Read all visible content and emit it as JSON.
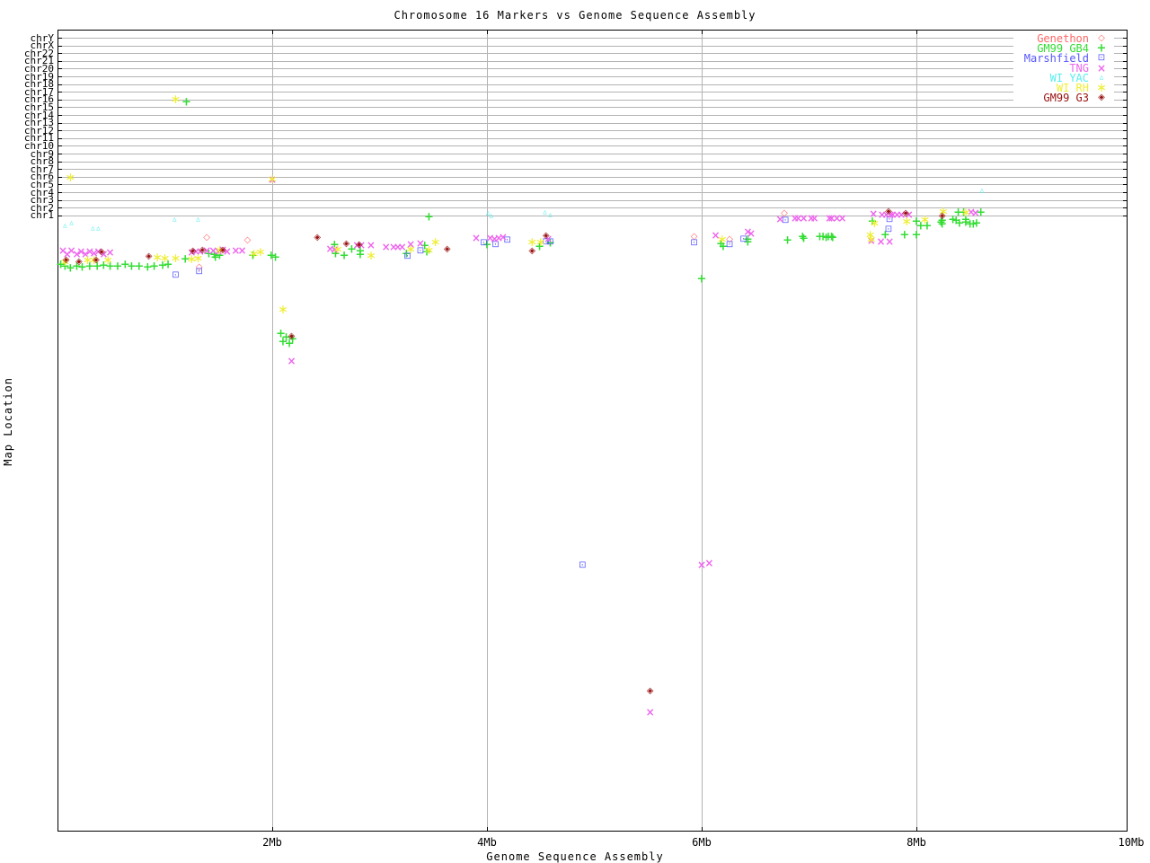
{
  "title": "Chromosome 16 Markers vs Genome Sequence Assembly",
  "x_axis_label": "Genome Sequence Assembly",
  "y_axis_label": "Map Location",
  "chart_data": {
    "type": "scatter",
    "title": "Chromosome 16 Markers vs Genome Sequence Assembly",
    "xlabel": "Genome Sequence Assembly",
    "ylabel": "Map Location",
    "xlim_mb": [
      0,
      10
    ],
    "grid": true,
    "legend_position": "top-right",
    "x_ticks": [
      {
        "label": "2Mb",
        "mb": 2
      },
      {
        "label": "4Mb",
        "mb": 4
      },
      {
        "label": "6Mb",
        "mb": 6
      },
      {
        "label": "8Mb",
        "mb": 8
      },
      {
        "label": "10Mb",
        "mb": 10
      }
    ],
    "y_categories": [
      "chrY",
      "chrX",
      "chr22",
      "chr21",
      "chr20",
      "chr19",
      "chr18",
      "chr17",
      "chr16",
      "chr15",
      "chr14",
      "chr13",
      "chr12",
      "chr11",
      "chr10",
      "chr9",
      "chr8",
      "chr7",
      "chr6",
      "chr5",
      "chr4",
      "chr3",
      "chr2",
      "chr1"
    ],
    "note": "points are [x in Mb, y in screen px]; lower y-axis region (map location within maps) is unlabeled in source",
    "series": [
      {
        "name": "Genethon",
        "color": "#ff6666",
        "symbol": "diamond",
        "glyph": "◇",
        "points": [
          [
            1.39,
            265
          ],
          [
            1.77,
            268
          ],
          [
            5.93,
            264
          ],
          [
            6.26,
            267
          ],
          [
            6.77,
            238
          ],
          [
            1.32,
            298
          ]
        ]
      },
      {
        "name": "GM99 GB4",
        "color": "#33dd33",
        "symbol": "plus",
        "glyph": "+",
        "points": [
          [
            0.03,
            295
          ],
          [
            0.07,
            297
          ],
          [
            0.12,
            299
          ],
          [
            0.18,
            297
          ],
          [
            0.23,
            298
          ],
          [
            0.3,
            297
          ],
          [
            0.37,
            297
          ],
          [
            0.43,
            296
          ],
          [
            0.49,
            297
          ],
          [
            0.56,
            297
          ],
          [
            0.63,
            295
          ],
          [
            0.69,
            297
          ],
          [
            0.76,
            297
          ],
          [
            0.84,
            298
          ],
          [
            0.9,
            297
          ],
          [
            0.98,
            296
          ],
          [
            1.03,
            295
          ],
          [
            1.2,
            114
          ],
          [
            1.19,
            289
          ],
          [
            1.41,
            283
          ],
          [
            1.46,
            284
          ],
          [
            1.47,
            287
          ],
          [
            1.51,
            285
          ],
          [
            1.82,
            285
          ],
          [
            1.99,
            285
          ],
          [
            2.03,
            287
          ],
          [
            2.08,
            372
          ],
          [
            2.1,
            381
          ],
          [
            2.13,
            376
          ],
          [
            2.16,
            383
          ],
          [
            2.19,
            378
          ],
          [
            2.58,
            273
          ],
          [
            2.59,
            283
          ],
          [
            2.67,
            285
          ],
          [
            2.74,
            278
          ],
          [
            2.82,
            280
          ],
          [
            2.82,
            284
          ],
          [
            3.25,
            283
          ],
          [
            3.42,
            274
          ],
          [
            3.44,
            281
          ],
          [
            3.46,
            242
          ],
          [
            4.0,
            273
          ],
          [
            4.49,
            275
          ],
          [
            4.59,
            271
          ],
          [
            6.0,
            311
          ],
          [
            6.18,
            272
          ],
          [
            6.2,
            275
          ],
          [
            6.43,
            267
          ],
          [
            6.43,
            270
          ],
          [
            6.8,
            268
          ],
          [
            6.94,
            264
          ],
          [
            6.95,
            266
          ],
          [
            7.1,
            264
          ],
          [
            7.13,
            264
          ],
          [
            7.16,
            265
          ],
          [
            7.18,
            264
          ],
          [
            7.21,
            264
          ],
          [
            7.22,
            265
          ],
          [
            7.59,
            247
          ],
          [
            7.71,
            262
          ],
          [
            7.89,
            262
          ],
          [
            8.0,
            262
          ],
          [
            8.0,
            247
          ],
          [
            8.04,
            252
          ],
          [
            8.1,
            252
          ],
          [
            8.23,
            248
          ],
          [
            8.24,
            246
          ],
          [
            8.24,
            250
          ],
          [
            8.34,
            245
          ],
          [
            8.37,
            246
          ],
          [
            8.39,
            237
          ],
          [
            8.4,
            249
          ],
          [
            8.44,
            237
          ],
          [
            8.46,
            245
          ],
          [
            8.46,
            248
          ],
          [
            8.5,
            250
          ],
          [
            8.53,
            250
          ],
          [
            8.56,
            249
          ],
          [
            8.6,
            237
          ]
        ]
      },
      {
        "name": "Marshfield",
        "color": "#5555ff",
        "symbol": "square",
        "glyph": "⊡",
        "points": [
          [
            1.1,
            307
          ],
          [
            1.32,
            303
          ],
          [
            3.26,
            286
          ],
          [
            3.38,
            280
          ],
          [
            3.97,
            271
          ],
          [
            4.08,
            273
          ],
          [
            4.19,
            268
          ],
          [
            4.55,
            270
          ],
          [
            4.59,
            270
          ],
          [
            4.89,
            630
          ],
          [
            5.93,
            271
          ],
          [
            6.26,
            273
          ],
          [
            6.39,
            267
          ],
          [
            6.78,
            246
          ],
          [
            7.75,
            245
          ],
          [
            7.74,
            256
          ]
        ]
      },
      {
        "name": "TNG",
        "color": "#ee66ee",
        "symbol": "x",
        "glyph": "×",
        "points": [
          [
            0.05,
            279
          ],
          [
            0.09,
            283
          ],
          [
            0.13,
            279
          ],
          [
            0.18,
            283
          ],
          [
            0.22,
            280
          ],
          [
            0.26,
            283
          ],
          [
            0.3,
            280
          ],
          [
            0.34,
            282
          ],
          [
            0.38,
            280
          ],
          [
            0.43,
            283
          ],
          [
            0.49,
            281
          ],
          [
            1.25,
            281
          ],
          [
            1.29,
            280
          ],
          [
            1.33,
            280
          ],
          [
            1.39,
            279
          ],
          [
            1.45,
            279
          ],
          [
            1.5,
            280
          ],
          [
            1.54,
            278
          ],
          [
            1.58,
            280
          ],
          [
            1.66,
            279
          ],
          [
            1.72,
            279
          ],
          [
            2.0,
            200
          ],
          [
            2.18,
            402
          ],
          [
            2.54,
            277
          ],
          [
            2.58,
            278
          ],
          [
            2.79,
            273
          ],
          [
            2.83,
            273
          ],
          [
            2.92,
            273
          ],
          [
            3.06,
            275
          ],
          [
            3.13,
            275
          ],
          [
            3.17,
            275
          ],
          [
            3.21,
            275
          ],
          [
            3.29,
            272
          ],
          [
            3.38,
            271
          ],
          [
            3.9,
            265
          ],
          [
            4.03,
            265
          ],
          [
            4.07,
            266
          ],
          [
            4.11,
            265
          ],
          [
            4.15,
            264
          ],
          [
            4.57,
            266
          ],
          [
            5.52,
            793
          ],
          [
            6.0,
            629
          ],
          [
            6.07,
            627
          ],
          [
            6.13,
            262
          ],
          [
            6.43,
            258
          ],
          [
            6.46,
            260
          ],
          [
            6.73,
            244
          ],
          [
            6.87,
            243
          ],
          [
            6.9,
            243
          ],
          [
            6.95,
            243
          ],
          [
            7.02,
            243
          ],
          [
            7.05,
            243
          ],
          [
            7.19,
            243
          ],
          [
            7.21,
            243
          ],
          [
            7.26,
            243
          ],
          [
            7.31,
            243
          ],
          [
            7.6,
            238
          ],
          [
            7.68,
            239
          ],
          [
            7.72,
            239
          ],
          [
            7.76,
            239
          ],
          [
            7.78,
            239
          ],
          [
            7.82,
            239
          ],
          [
            7.86,
            239
          ],
          [
            7.93,
            239
          ],
          [
            8.51,
            236
          ],
          [
            8.55,
            237
          ],
          [
            7.58,
            268
          ],
          [
            7.67,
            269
          ],
          [
            7.75,
            269
          ]
        ]
      },
      {
        "name": "WI YAC",
        "color": "#55eeee",
        "symbol": "tri",
        "glyph": "▵",
        "points": [
          [
            0.07,
            252
          ],
          [
            0.13,
            249
          ],
          [
            0.33,
            255
          ],
          [
            0.38,
            255
          ],
          [
            1.09,
            245
          ],
          [
            1.31,
            245
          ],
          [
            4.01,
            238
          ],
          [
            4.04,
            241
          ],
          [
            4.54,
            237
          ],
          [
            4.59,
            240
          ],
          [
            8.61,
            213
          ]
        ]
      },
      {
        "name": "WI RH",
        "color": "#eeee33",
        "symbol": "ast",
        "glyph": "∗",
        "points": [
          [
            1.1,
            111
          ],
          [
            2.0,
            200
          ],
          [
            0.12,
            198
          ],
          [
            0.07,
            292
          ],
          [
            0.28,
            290
          ],
          [
            0.34,
            290
          ],
          [
            0.47,
            290
          ],
          [
            0.93,
            287
          ],
          [
            1.0,
            288
          ],
          [
            1.1,
            288
          ],
          [
            1.25,
            289
          ],
          [
            1.31,
            288
          ],
          [
            1.51,
            279
          ],
          [
            1.83,
            283
          ],
          [
            1.89,
            281
          ],
          [
            2.1,
            345
          ],
          [
            2.61,
            278
          ],
          [
            2.92,
            285
          ],
          [
            3.29,
            278
          ],
          [
            3.46,
            279
          ],
          [
            3.52,
            270
          ],
          [
            4.42,
            270
          ],
          [
            4.5,
            270
          ],
          [
            6.19,
            267
          ],
          [
            7.57,
            262
          ],
          [
            7.58,
            267
          ],
          [
            7.61,
            249
          ],
          [
            7.91,
            247
          ],
          [
            8.08,
            245
          ],
          [
            8.25,
            236
          ],
          [
            8.46,
            237
          ]
        ]
      },
      {
        "name": "GM99 G3",
        "color": "#991111",
        "symbol": "dd",
        "glyph": "◈",
        "points": [
          [
            0.08,
            290
          ],
          [
            0.2,
            292
          ],
          [
            0.36,
            290
          ],
          [
            0.41,
            281
          ],
          [
            0.85,
            286
          ],
          [
            1.26,
            280
          ],
          [
            1.35,
            279
          ],
          [
            1.54,
            279
          ],
          [
            2.18,
            375
          ],
          [
            2.42,
            265
          ],
          [
            2.69,
            272
          ],
          [
            2.81,
            273
          ],
          [
            3.63,
            278
          ],
          [
            4.42,
            280
          ],
          [
            4.55,
            263
          ],
          [
            7.74,
            236
          ],
          [
            7.9,
            238
          ],
          [
            8.24,
            241
          ],
          [
            5.52,
            770
          ]
        ]
      }
    ]
  }
}
